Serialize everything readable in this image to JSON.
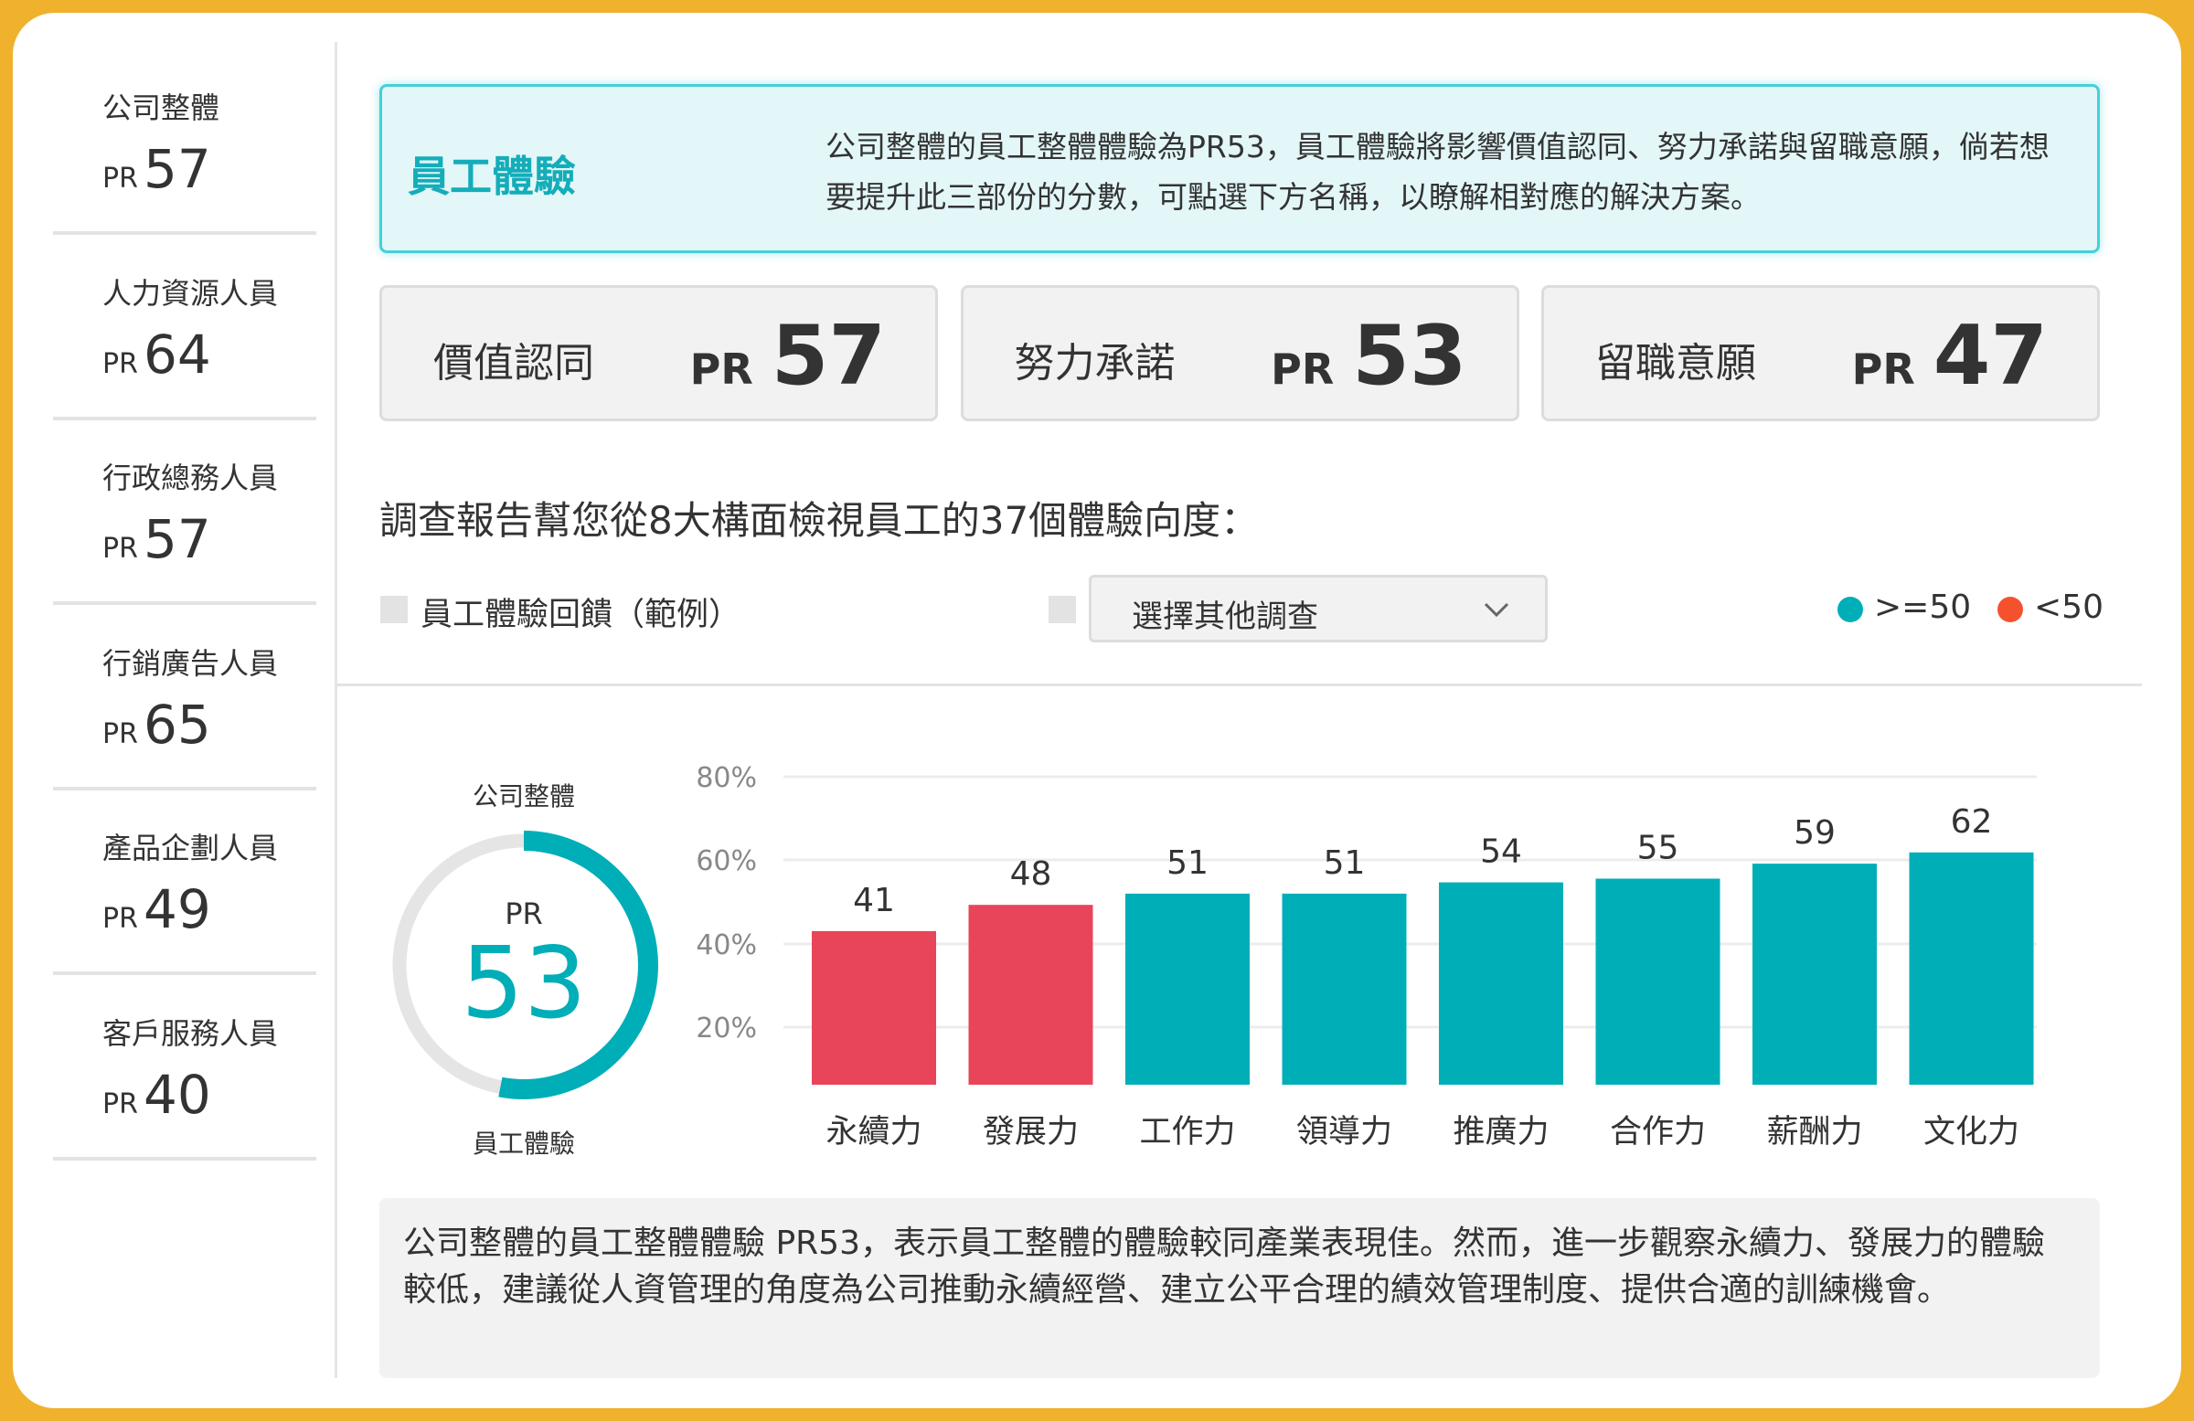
{
  "colors": {
    "teal": "#00aeb8",
    "red_bar": "#e8455a",
    "red_legend": "#f4522e",
    "frame": "#f0b12d"
  },
  "sidebar": {
    "items": [
      {
        "label": "公司整體",
        "pr_prefix": "PR",
        "value": "57"
      },
      {
        "label": "人力資源人員",
        "pr_prefix": "PR",
        "value": "64"
      },
      {
        "label": "行政總務人員",
        "pr_prefix": "PR",
        "value": "57"
      },
      {
        "label": "行銷廣告人員",
        "pr_prefix": "PR",
        "value": "65"
      },
      {
        "label": "產品企劃人員",
        "pr_prefix": "PR",
        "value": "49"
      },
      {
        "label": "客戶服務人員",
        "pr_prefix": "PR",
        "value": "40"
      }
    ]
  },
  "info": {
    "title": "員工體驗",
    "description": "公司整體的員工整體體驗為PR53，員工體驗將影響價值認同、努力承諾與留職意願，倘若想要提升此三部份的分數，可點選下方名稱，以瞭解相對應的解決方案。"
  },
  "cards": [
    {
      "label": "價值認同",
      "pr_prefix": "PR",
      "value": "57"
    },
    {
      "label": "努力承諾",
      "pr_prefix": "PR",
      "value": "53"
    },
    {
      "label": "留職意願",
      "pr_prefix": "PR",
      "value": "47"
    }
  ],
  "heading": "調查報告幫您從8大構面檢視員工的37個體驗向度：",
  "controls": {
    "survey_label": "員工體驗回饋（範例）",
    "dropdown_value": "選擇其他調查",
    "dropdown_icon": "chevron-down-icon"
  },
  "legend": [
    {
      "label": ">=50",
      "color": "#00aeb8"
    },
    {
      "label": "<50",
      "color": "#f4522e"
    }
  ],
  "donut": {
    "top_label": "公司整體",
    "bottom_label": "員工體驗",
    "pr_prefix": "PR",
    "value": "53",
    "percent": 53
  },
  "chart_data": {
    "type": "bar",
    "categories": [
      "永續力",
      "發展力",
      "工作力",
      "領導力",
      "推廣力",
      "合作力",
      "薪酬力",
      "文化力"
    ],
    "values": [
      41,
      48,
      51,
      51,
      54,
      55,
      59,
      62
    ],
    "y_ticks": [
      "80%",
      "60%",
      "40%",
      "20%"
    ],
    "threshold": 50,
    "grid": true,
    "legend_placement": "top-right"
  },
  "summary": "公司整體的員工整體體驗 PR53，表示員工整體的體驗較同產業表現佳。然而，進一步觀察永續力、發展力的體驗較低，建議從人資管理的角度為公司推動永續經營、建立公平合理的績效管理制度、提供合適的訓練機會。"
}
